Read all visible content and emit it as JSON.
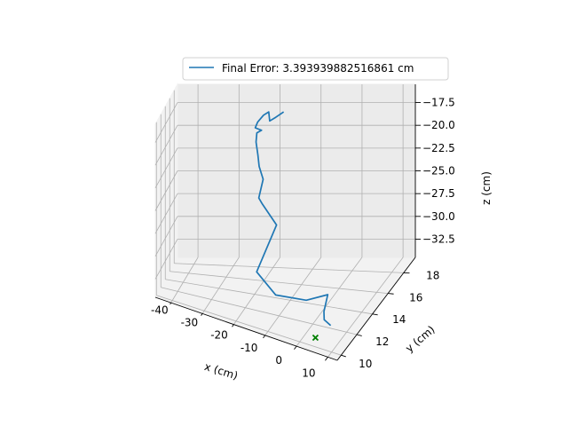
{
  "chart_data": {
    "type": "line3d",
    "legend": {
      "label": "Final Error: 3.393939882516861 cm",
      "placement": "top-center"
    },
    "axes": {
      "x": {
        "label": "x (cm)",
        "ticks": [
          -40,
          -30,
          -20,
          -10,
          0,
          10
        ],
        "range": [
          -45,
          13
        ]
      },
      "y": {
        "label": "y (cm)",
        "ticks": [
          10,
          12,
          14,
          16,
          18
        ],
        "range": [
          9.5,
          19.5
        ]
      },
      "z": {
        "label": "z (cm)",
        "ticks": [
          -32.5,
          -30.0,
          -27.5,
          -25.0,
          -22.5,
          -20.0,
          -17.5
        ],
        "range": [
          -34.5,
          -15.5
        ]
      }
    },
    "grid": true,
    "series": [
      {
        "name": "Final Error: 3.393939882516861 cm",
        "color": "#1f77b4",
        "points": [
          [
            7.0,
            11.2,
            -33.2
          ],
          [
            4.6,
            11.4,
            -33.0
          ],
          [
            3.7,
            11.8,
            -32.6
          ],
          [
            3.2,
            12.6,
            -31.6
          ],
          [
            -2.5,
            12.3,
            -32.4
          ],
          [
            -11.0,
            12.0,
            -32.3
          ],
          [
            -17.5,
            12.6,
            -30.8
          ],
          [
            -15.0,
            14.8,
            -27.2
          ],
          [
            -19.0,
            14.9,
            -25.2
          ],
          [
            -19.2,
            14.3,
            -24.1
          ],
          [
            -19.3,
            15.3,
            -22.8
          ],
          [
            -20.0,
            15.0,
            -21.2
          ],
          [
            -20.1,
            14.8,
            -19.8
          ],
          [
            -20.6,
            14.8,
            -18.4
          ],
          [
            -21.0,
            15.3,
            -17.8
          ],
          [
            -20.0,
            15.5,
            -17.6
          ],
          [
            -21.2,
            15.1,
            -17.1
          ],
          [
            -20.8,
            15.3,
            -16.6
          ],
          [
            -19.6,
            15.6,
            -16.0
          ],
          [
            -18.7,
            16.0,
            -15.9
          ],
          [
            -18.3,
            15.9,
            -16.8
          ],
          [
            -16.8,
            16.0,
            -16.4
          ],
          [
            -15.0,
            16.2,
            -15.9
          ]
        ]
      }
    ],
    "target_marker": {
      "symbol": "x",
      "color": "#008000",
      "point": [
        3.2,
        10.8,
        -34.5
      ]
    }
  }
}
